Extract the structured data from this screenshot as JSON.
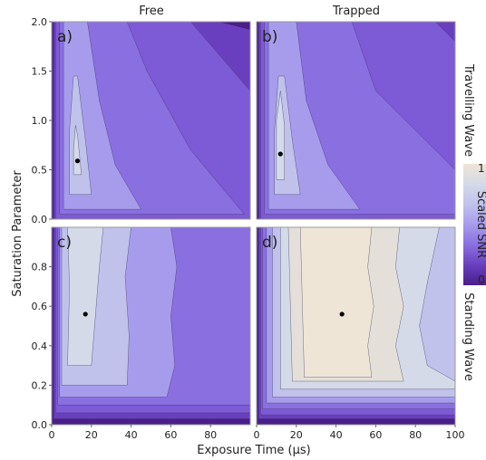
{
  "chart_data": {
    "type": "heatmap",
    "column_titles": [
      "Free",
      "Trapped"
    ],
    "row_titles": [
      "Travelling Wave",
      "Standing Wave"
    ],
    "xlabel": "Exposure Time (µs)",
    "ylabel": "Saturation Parameter",
    "colorbar": {
      "label": "Scaled SNR",
      "ticks": [
        {
          "value": 0,
          "label": "0"
        },
        {
          "value": 1,
          "label": "1"
        }
      ],
      "colors": [
        "#4a1e8c",
        "#6a3fbf",
        "#8a6fe0",
        "#a79cec",
        "#c0c2ec",
        "#d4dae8",
        "#efe5d6"
      ]
    },
    "panels": [
      {
        "label": "a)",
        "row": 0,
        "col": 0,
        "xlim": [
          0,
          100
        ],
        "ylim": [
          0,
          2.0
        ],
        "yticks": [
          "0.0",
          "0.5",
          "1.0",
          "1.5",
          "2.0"
        ],
        "xticks": [],
        "optimum": {
          "x": 13,
          "y": 0.59
        },
        "levels": [
          {
            "color": "#4a1e8c",
            "points": [
              [
                0,
                0
              ],
              [
                100,
                0
              ],
              [
                100,
                2.0
              ],
              [
                0,
                2.0
              ]
            ]
          },
          {
            "color": "#6a3fbf",
            "points": [
              [
                1,
                0
              ],
              [
                100,
                0
              ],
              [
                100,
                1.92
              ],
              [
                84,
                2.0
              ],
              [
                1,
                2.0
              ]
            ]
          },
          {
            "color": "#7d5ad6",
            "points": [
              [
                2,
                0
              ],
              [
                100,
                0
              ],
              [
                100,
                1.3
              ],
              [
                70,
                2.0
              ],
              [
                2,
                2.0
              ]
            ]
          },
          {
            "color": "#8a6fe0",
            "points": [
              [
                4,
                0.05
              ],
              [
                97,
                0.05
              ],
              [
                70,
                0.7
              ],
              [
                48,
                1.5
              ],
              [
                38,
                2.0
              ],
              [
                4,
                2.0
              ]
            ]
          },
          {
            "color": "#a79cec",
            "points": [
              [
                6,
                0.1
              ],
              [
                45,
                0.1
              ],
              [
                32,
                0.55
              ],
              [
                24,
                1.2
              ],
              [
                18,
                2.0
              ],
              [
                6,
                2.0
              ]
            ]
          },
          {
            "color": "#c0c2ec",
            "points": [
              [
                9,
                0.25
              ],
              [
                20,
                0.25
              ],
              [
                17,
                0.8
              ],
              [
                13,
                1.45
              ],
              [
                11,
                1.45
              ],
              [
                9,
                0.9
              ]
            ]
          },
          {
            "color": "#d4dae8",
            "points": [
              [
                11,
                0.45
              ],
              [
                15,
                0.45
              ],
              [
                13,
                0.85
              ],
              [
                12,
                0.95
              ],
              [
                11,
                0.7
              ]
            ]
          }
        ]
      },
      {
        "label": "b)",
        "row": 0,
        "col": 1,
        "xlim": [
          0,
          100
        ],
        "ylim": [
          0,
          2.0
        ],
        "yticks": [],
        "xticks": [],
        "optimum": {
          "x": 12,
          "y": 0.66
        },
        "levels": [
          {
            "color": "#4a1e8c",
            "points": [
              [
                0,
                0
              ],
              [
                100,
                0
              ],
              [
                100,
                2.0
              ],
              [
                0,
                2.0
              ]
            ]
          },
          {
            "color": "#6a3fbf",
            "points": [
              [
                1,
                0
              ],
              [
                100,
                0
              ],
              [
                100,
                2.0
              ],
              [
                1,
                2.0
              ]
            ]
          },
          {
            "color": "#7d5ad6",
            "points": [
              [
                2,
                0
              ],
              [
                100,
                0
              ],
              [
                100,
                1.8
              ],
              [
                90,
                2.0
              ],
              [
                2,
                2.0
              ]
            ]
          },
          {
            "color": "#8a6fe0",
            "points": [
              [
                4,
                0.05
              ],
              [
                100,
                0.05
              ],
              [
                100,
                0.5
              ],
              [
                60,
                1.3
              ],
              [
                48,
                2.0
              ],
              [
                4,
                2.0
              ]
            ]
          },
          {
            "color": "#a79cec",
            "points": [
              [
                6,
                0.1
              ],
              [
                52,
                0.1
              ],
              [
                36,
                0.55
              ],
              [
                25,
                1.2
              ],
              [
                20,
                2.0
              ],
              [
                6,
                2.0
              ]
            ]
          },
          {
            "color": "#c0c2ec",
            "points": [
              [
                9,
                0.25
              ],
              [
                22,
                0.25
              ],
              [
                18,
                0.8
              ],
              [
                14,
                1.45
              ],
              [
                11,
                1.45
              ],
              [
                9,
                0.9
              ]
            ]
          },
          {
            "color": "#d4dae8",
            "points": [
              [
                10,
                0.4
              ],
              [
                14,
                0.4
              ],
              [
                14,
                0.95
              ],
              [
                12,
                1.3
              ],
              [
                10,
                1.0
              ]
            ]
          }
        ]
      },
      {
        "label": "c)",
        "row": 1,
        "col": 0,
        "xlim": [
          0,
          100
        ],
        "ylim": [
          0,
          1.0
        ],
        "yticks": [
          "0.0",
          "0.2",
          "0.4",
          "0.6",
          "0.8"
        ],
        "xticks": [
          "0",
          "20",
          "40",
          "60",
          "80"
        ],
        "optimum": {
          "x": 17,
          "y": 0.56
        },
        "levels": [
          {
            "color": "#4a1e8c",
            "points": [
              [
                0,
                0
              ],
              [
                100,
                0
              ],
              [
                100,
                1.0
              ],
              [
                0,
                1.0
              ]
            ]
          },
          {
            "color": "#6a3fbf",
            "points": [
              [
                1,
                0.03
              ],
              [
                100,
                0.03
              ],
              [
                100,
                1.0
              ],
              [
                1,
                1.0
              ]
            ]
          },
          {
            "color": "#7d5ad6",
            "points": [
              [
                2,
                0.06
              ],
              [
                100,
                0.06
              ],
              [
                100,
                1.0
              ],
              [
                2,
                1.0
              ]
            ]
          },
          {
            "color": "#8a6fe0",
            "points": [
              [
                3,
                0.1
              ],
              [
                100,
                0.1
              ],
              [
                100,
                1.0
              ],
              [
                3,
                1.0
              ]
            ]
          },
          {
            "color": "#a79cec",
            "points": [
              [
                4,
                0.14
              ],
              [
                58,
                0.14
              ],
              [
                62,
                0.3
              ],
              [
                60,
                0.55
              ],
              [
                63,
                0.8
              ],
              [
                60,
                1.0
              ],
              [
                4,
                1.0
              ]
            ]
          },
          {
            "color": "#c0c2ec",
            "points": [
              [
                5,
                0.2
              ],
              [
                38,
                0.2
              ],
              [
                39,
                0.45
              ],
              [
                37,
                0.75
              ],
              [
                40,
                1.0
              ],
              [
                5,
                1.0
              ]
            ]
          },
          {
            "color": "#d4dae8",
            "points": [
              [
                8,
                0.3
              ],
              [
                20,
                0.3
              ],
              [
                22,
                0.55
              ],
              [
                24,
                0.8
              ],
              [
                26,
                1.0
              ],
              [
                8,
                1.0
              ],
              [
                9,
                0.7
              ]
            ]
          }
        ]
      },
      {
        "label": "d)",
        "row": 1,
        "col": 1,
        "xlim": [
          0,
          100
        ],
        "ylim": [
          0,
          1.0
        ],
        "yticks": [],
        "xticks": [
          "0",
          "20",
          "40",
          "60",
          "80",
          "100"
        ],
        "optimum": {
          "x": 43,
          "y": 0.56
        },
        "levels": [
          {
            "color": "#4a1e8c",
            "points": [
              [
                0,
                0
              ],
              [
                100,
                0
              ],
              [
                100,
                1.0
              ],
              [
                0,
                1.0
              ]
            ]
          },
          {
            "color": "#6a3fbf",
            "points": [
              [
                1,
                0.03
              ],
              [
                100,
                0.03
              ],
              [
                100,
                1.0
              ],
              [
                1,
                1.0
              ]
            ]
          },
          {
            "color": "#7d5ad6",
            "points": [
              [
                2,
                0.05
              ],
              [
                100,
                0.05
              ],
              [
                100,
                1.0
              ],
              [
                2,
                1.0
              ]
            ]
          },
          {
            "color": "#8a6fe0",
            "points": [
              [
                3,
                0.08
              ],
              [
                100,
                0.08
              ],
              [
                100,
                1.0
              ],
              [
                3,
                1.0
              ]
            ]
          },
          {
            "color": "#a79cec",
            "points": [
              [
                5,
                0.11
              ],
              [
                100,
                0.11
              ],
              [
                100,
                1.0
              ],
              [
                5,
                1.0
              ]
            ]
          },
          {
            "color": "#c0c2ec",
            "points": [
              [
                8,
                0.14
              ],
              [
                100,
                0.14
              ],
              [
                100,
                1.0
              ],
              [
                8,
                1.0
              ]
            ]
          },
          {
            "color": "#d4dae8",
            "points": [
              [
                12,
                0.18
              ],
              [
                100,
                0.18
              ],
              [
                100,
                0.22
              ],
              [
                86,
                0.3
              ],
              [
                82,
                0.5
              ],
              [
                86,
                0.72
              ],
              [
                92,
                1.0
              ],
              [
                12,
                1.0
              ]
            ]
          },
          {
            "color": "#e4e0d9",
            "points": [
              [
                18,
                0.22
              ],
              [
                74,
                0.22
              ],
              [
                70,
                0.4
              ],
              [
                74,
                0.6
              ],
              [
                70,
                0.8
              ],
              [
                72,
                1.0
              ],
              [
                16,
                1.0
              ]
            ]
          },
          {
            "color": "#efe5d6",
            "points": [
              [
                24,
                0.24
              ],
              [
                58,
                0.24
              ],
              [
                56,
                0.4
              ],
              [
                59,
                0.6
              ],
              [
                56,
                0.8
              ],
              [
                58,
                1.0
              ],
              [
                22,
                1.0
              ]
            ]
          }
        ]
      }
    ]
  }
}
